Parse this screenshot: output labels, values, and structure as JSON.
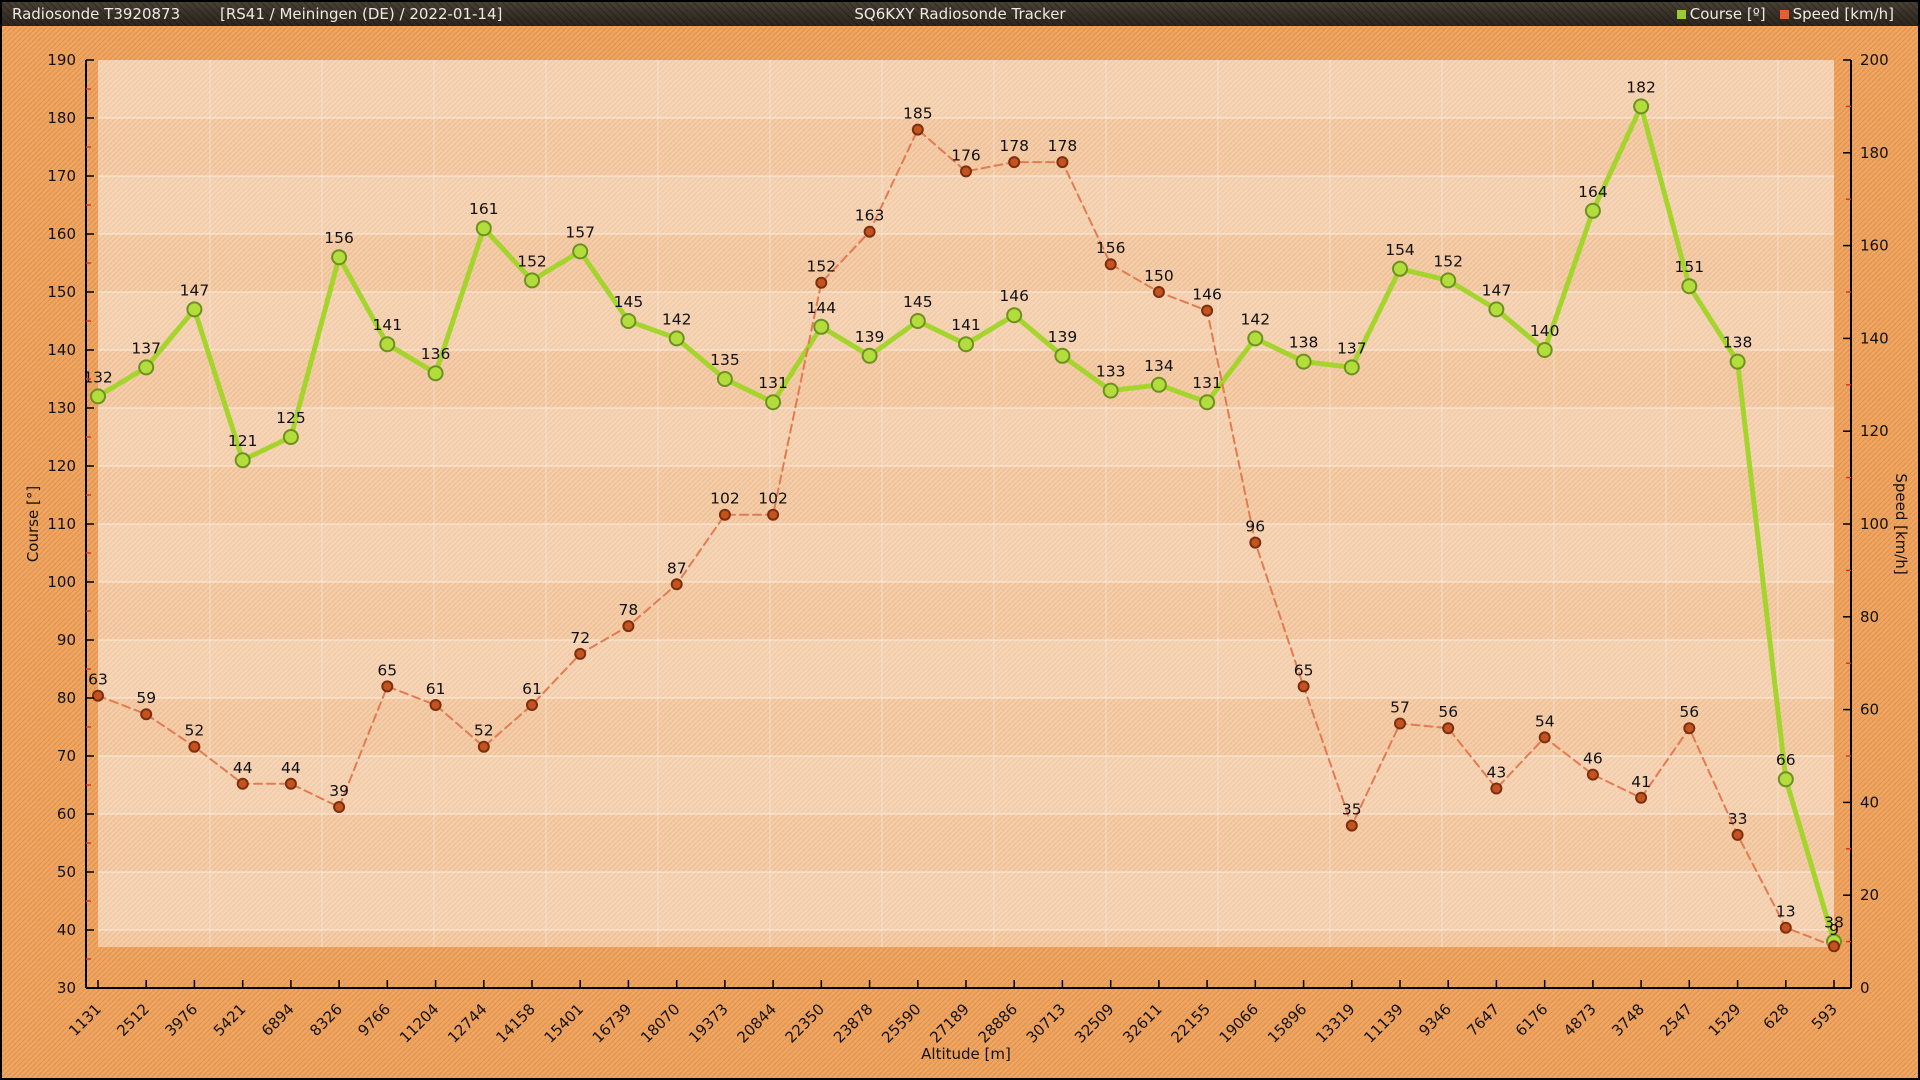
{
  "header": {
    "station": "Radiosonde T3920873",
    "flight_info": "[RS41 / Meiningen (DE) / 2022-01-14]",
    "app_title": "SQ6KXY Radiosonde Tracker",
    "legend": [
      {
        "label": "Course [º]",
        "color": "#9ccb2d"
      },
      {
        "label": "Speed [km/h]",
        "color": "#e2622e"
      }
    ]
  },
  "chart_data": {
    "type": "line",
    "title": "SQ6KXY Radiosonde Tracker",
    "xlabel": "Altitude [m]",
    "grid": true,
    "legend_position": "top-right",
    "categories": [
      "1131",
      "2512",
      "3976",
      "5421",
      "6894",
      "8326",
      "9766",
      "11204",
      "12744",
      "14158",
      "15401",
      "16739",
      "18070",
      "19373",
      "20844",
      "22350",
      "23878",
      "25590",
      "27189",
      "28886",
      "30713",
      "32509",
      "32611",
      "22155",
      "19066",
      "15896",
      "13319",
      "11139",
      "9346",
      "7647",
      "6176",
      "4873",
      "3748",
      "2547",
      "1529",
      "628",
      "593"
    ],
    "left_axis": {
      "label": "Course [°]",
      "min": 30,
      "max": 190,
      "step": 10
    },
    "right_axis": {
      "label": "Speed [km/h]",
      "min": 0,
      "max": 200,
      "step": 20
    },
    "series": [
      {
        "name": "Course [°]",
        "axis": "left",
        "style": "solid",
        "line_color": "#a5d52d",
        "marker_fill": "#b2dd3c",
        "marker_stroke": "#6e9021",
        "values": [
          132,
          137,
          147,
          121,
          125,
          156,
          141,
          136,
          161,
          152,
          157,
          145,
          142,
          135,
          131,
          144,
          139,
          145,
          141,
          146,
          139,
          133,
          134,
          131,
          142,
          138,
          137,
          154,
          152,
          147,
          140,
          164,
          182,
          151,
          138,
          66,
          38
        ]
      },
      {
        "name": "Speed [km/h]",
        "axis": "right",
        "style": "dashed",
        "line_color": "#e27b52",
        "marker_fill": "#c5531f",
        "marker_stroke": "#7c2f10",
        "values": [
          63,
          59,
          52,
          44,
          44,
          39,
          65,
          61,
          52,
          61,
          72,
          78,
          87,
          102,
          102,
          152,
          163,
          185,
          176,
          178,
          178,
          156,
          150,
          146,
          96,
          65,
          35,
          57,
          56,
          43,
          54,
          46,
          41,
          56,
          33,
          13,
          9
        ]
      }
    ],
    "colors": {
      "outer_background": "#efa661",
      "outer_hatch": "#e19250",
      "plot_background": "#f5cda8",
      "plot_hatch": "#ecbd94",
      "gridline": "#ffffff",
      "axis": "#000000",
      "minor_tick": "#d43a25",
      "label_text": "#111111"
    }
  }
}
